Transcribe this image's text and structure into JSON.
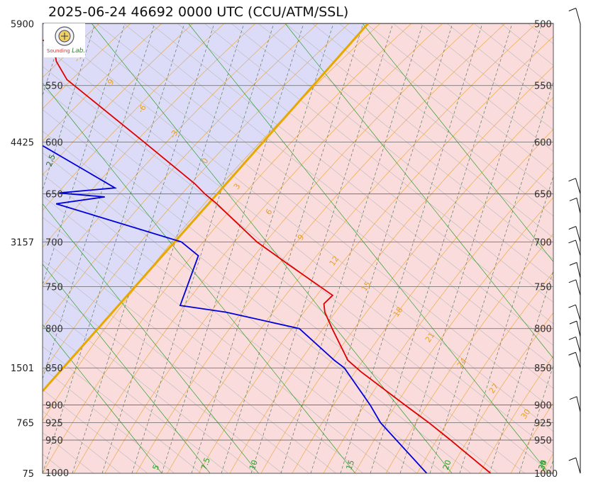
{
  "title": "2025-06-24 46692 0000 UTC (CCU/ATM/SSL)",
  "logo": {
    "text": "Sounding",
    "text2": "Lab."
  },
  "chart_data": {
    "type": "skew-t log-p",
    "pressure_levels": [
      500,
      550,
      600,
      650,
      700,
      750,
      800,
      850,
      900,
      925,
      950,
      1000
    ],
    "height_labels": [
      {
        "p": 500,
        "label": "5900"
      },
      {
        "p": 600,
        "label": "4425"
      },
      {
        "p": 700,
        "label": "3157"
      },
      {
        "p": 850,
        "label": "1501"
      },
      {
        "p": 925,
        "label": "765"
      },
      {
        "p": 1000,
        "label": "75"
      }
    ],
    "temperature_range": [
      5,
      34
    ],
    "temperature_ticks": [
      5,
      7.5,
      10,
      15,
      20,
      25,
      30,
      34
    ],
    "isotherm_labels": [
      "5",
      "7.5",
      "10",
      "15",
      "20",
      "25",
      "30",
      "34"
    ],
    "dry_adiabat_labels": [
      "-12",
      "-9",
      "-6",
      "-3",
      "0",
      "3",
      "6",
      "9",
      "12",
      "15",
      "18",
      "21",
      "24",
      "27",
      "30"
    ],
    "mixing_ratio_labels": [
      "2.5"
    ],
    "stable_region_color": "#dcdcf8",
    "unstable_region_color": "#fadcdc",
    "boundary_color": "#e8a800",
    "temperature_color": "#e00000",
    "dewpoint_color": "#0000dd",
    "isotherm_color": "#2ca02c",
    "dry_adiabat_color": "#e8a020",
    "series": [
      {
        "name": "Temperature",
        "points": [
          {
            "p": 500,
            "t": 15.8
          },
          {
            "p": 510,
            "t": 16.2
          },
          {
            "p": 515,
            "t": 17.2
          },
          {
            "p": 520,
            "t": 17.0
          },
          {
            "p": 530,
            "t": 16.6
          },
          {
            "p": 545,
            "t": 16.4
          },
          {
            "p": 600,
            "t": 17.8
          },
          {
            "p": 640,
            "t": 18.7
          },
          {
            "p": 650,
            "t": 18.8
          },
          {
            "p": 660,
            "t": 19.0
          },
          {
            "p": 700,
            "t": 19.5
          },
          {
            "p": 725,
            "t": 20.2
          },
          {
            "p": 760,
            "t": 21.2
          },
          {
            "p": 770,
            "t": 20.4
          },
          {
            "p": 780,
            "t": 20.1
          },
          {
            "p": 800,
            "t": 19.8
          },
          {
            "p": 840,
            "t": 19.3
          },
          {
            "p": 855,
            "t": 19.5
          },
          {
            "p": 900,
            "t": 20.4
          },
          {
            "p": 925,
            "t": 20.9
          },
          {
            "p": 950,
            "t": 21.3
          },
          {
            "p": 1000,
            "t": 22.0
          }
        ]
      },
      {
        "name": "Dewpoint",
        "points": [
          {
            "p": 500,
            "t": 8.5
          },
          {
            "p": 510,
            "t": 11.8
          },
          {
            "p": 520,
            "t": 8.5
          },
          {
            "p": 531,
            "t": 11.6
          },
          {
            "p": 580,
            "t": 11.2
          },
          {
            "p": 644,
            "t": 14.4
          },
          {
            "p": 649,
            "t": 11.3
          },
          {
            "p": 653,
            "t": 13.5
          },
          {
            "p": 660,
            "t": 10.7
          },
          {
            "p": 700,
            "t": 15.6
          },
          {
            "p": 715,
            "t": 15.9
          },
          {
            "p": 772,
            "t": 12.9
          },
          {
            "p": 780,
            "t": 15.0
          },
          {
            "p": 800,
            "t": 18.1
          },
          {
            "p": 840,
            "t": 18.6
          },
          {
            "p": 850,
            "t": 18.8
          },
          {
            "p": 900,
            "t": 18.6
          },
          {
            "p": 925,
            "t": 18.4
          },
          {
            "p": 1000,
            "t": 18.7
          }
        ]
      }
    ],
    "wind_barbs": [
      {
        "p": 500
      },
      {
        "p": 650
      },
      {
        "p": 670
      },
      {
        "p": 700
      },
      {
        "p": 715
      },
      {
        "p": 740
      },
      {
        "p": 760
      },
      {
        "p": 790
      },
      {
        "p": 810
      },
      {
        "p": 830
      },
      {
        "p": 850
      },
      {
        "p": 910
      },
      {
        "p": 1000
      }
    ]
  }
}
